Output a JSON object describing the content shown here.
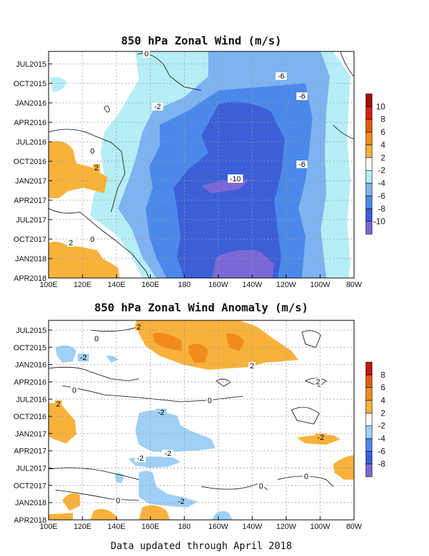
{
  "chart_data": [
    {
      "type": "heatmap",
      "title": "850 hPa Zonal Wind (m/s)",
      "x_tick_labels": [
        "100E",
        "120E",
        "140E",
        "160E",
        "180",
        "160W",
        "140W",
        "120W",
        "100W",
        "80W"
      ],
      "y_tick_labels": [
        "JUL2015",
        "OCT2015",
        "JAN2016",
        "APR2016",
        "JUL2016",
        "OCT2016",
        "JAN2017",
        "APR2017",
        "JUL2017",
        "OCT2017",
        "JAN2018",
        "APR2018"
      ],
      "colorbar": {
        "levels": [
          -10,
          -8,
          -6,
          -4,
          -2,
          2,
          4,
          6,
          8,
          10
        ],
        "colors": [
          "#7b68d6",
          "#3c5fd8",
          "#4a89ea",
          "#7db3f0",
          "#b6eef6",
          "#ffffff",
          "#f8b23c",
          "#f28b1c",
          "#e65b10",
          "#d3220e",
          "#a50e0e"
        ]
      },
      "contour_labels": [
        "0",
        "-2",
        "-6",
        "-6",
        "0",
        "2",
        "-6",
        "-10",
        "2",
        "0"
      ],
      "grid": true
    },
    {
      "type": "heatmap",
      "title": "850 hPa Zonal Wind Anomaly (m/s)",
      "x_tick_labels": [
        "100E",
        "120E",
        "140E",
        "160E",
        "180",
        "160W",
        "140W",
        "120W",
        "100W",
        "80W"
      ],
      "y_tick_labels": [
        "JUL2015",
        "OCT2015",
        "JAN2016",
        "APR2016",
        "JUL2016",
        "OCT2016",
        "JAN2017",
        "APR2017",
        "JUL2017",
        "OCT2017",
        "JAN2018",
        "APR2018"
      ],
      "colorbar": {
        "levels": [
          -8,
          -6,
          -4,
          -2,
          2,
          4,
          6,
          8
        ],
        "colors": [
          "#7b68d6",
          "#3c5fd8",
          "#4a89ea",
          "#9fd0f5",
          "#ffffff",
          "#f8b23c",
          "#f28b1c",
          "#e65b10",
          "#c0180e"
        ]
      },
      "contour_labels": [
        "2",
        "0",
        "-2",
        "2",
        "0",
        "2",
        "-2",
        "0",
        "-2",
        "-2",
        "-2",
        "0",
        "-2",
        "0",
        "0",
        "2"
      ],
      "grid": true
    }
  ],
  "footer": "Data updated through April 2018"
}
